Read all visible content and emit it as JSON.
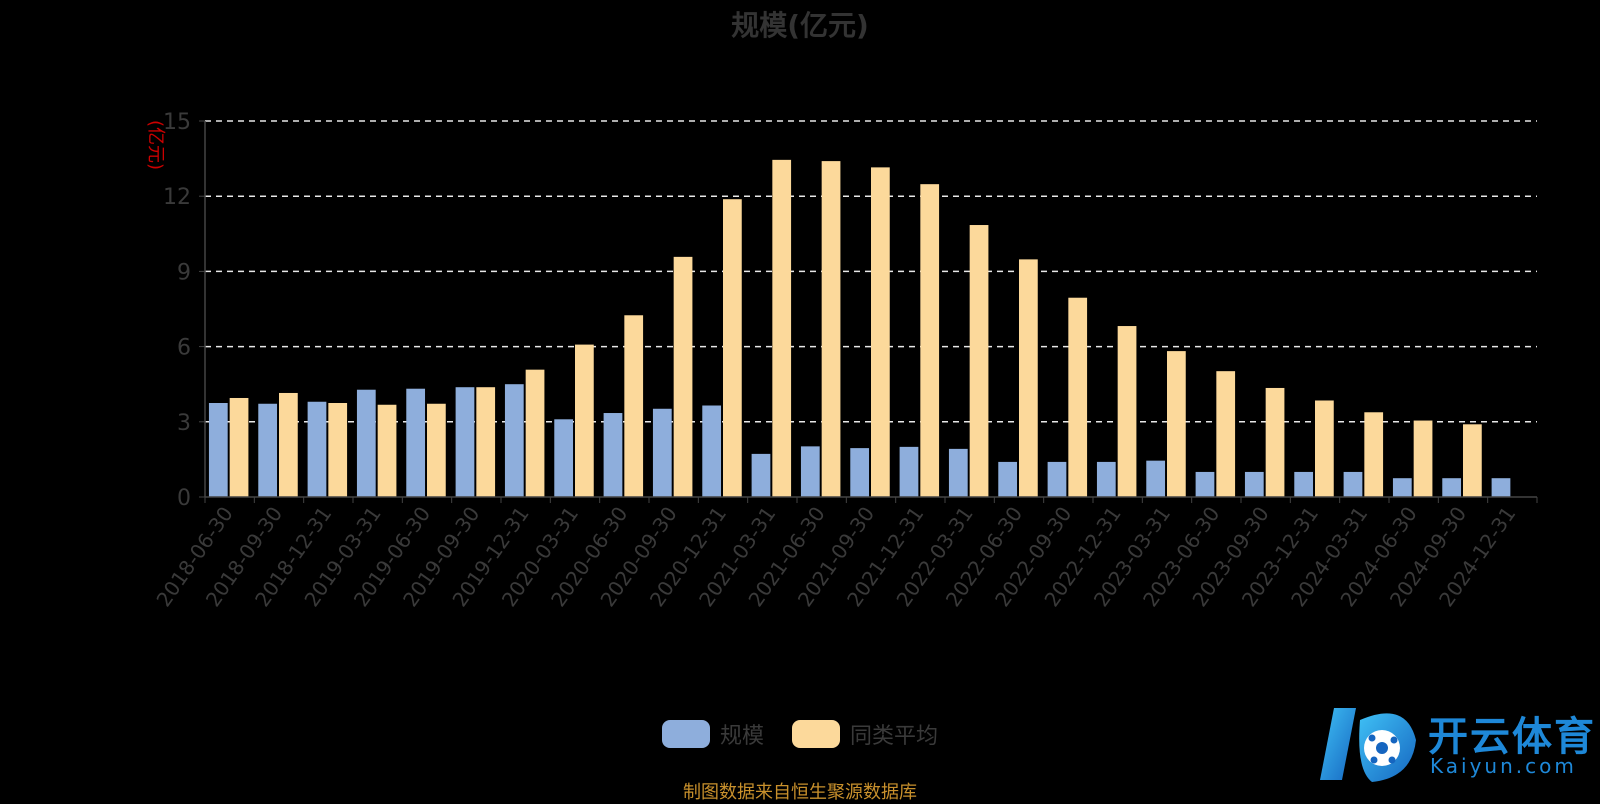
{
  "chart_data": {
    "type": "bar",
    "title": "规模(亿元)",
    "ylabel": "(亿元)",
    "xlabel": "",
    "ylim": [
      0,
      15
    ],
    "yticks": [
      0,
      3,
      6,
      9,
      12,
      15
    ],
    "grid": "dashed-horizontal",
    "legend_position": "bottom",
    "categories": [
      "2018-06-30",
      "2018-09-30",
      "2018-12-31",
      "2019-03-31",
      "2019-06-30",
      "2019-09-30",
      "2019-12-31",
      "2020-03-31",
      "2020-06-30",
      "2020-09-30",
      "2020-12-31",
      "2021-03-31",
      "2021-06-30",
      "2021-09-30",
      "2021-12-31",
      "2022-03-31",
      "2022-06-30",
      "2022-09-30",
      "2022-12-31",
      "2023-03-31",
      "2023-06-30",
      "2023-09-30",
      "2023-12-31",
      "2024-03-31",
      "2024-06-30",
      "2024-09-30",
      "2024-12-31"
    ],
    "series": [
      {
        "name": "规模",
        "color": "#8eaedc",
        "values": [
          3.75,
          3.72,
          3.8,
          4.28,
          4.32,
          4.38,
          4.5,
          3.1,
          3.35,
          3.52,
          3.65,
          1.72,
          2.02,
          1.95,
          2.0,
          1.92,
          1.4,
          1.4,
          1.4,
          1.45,
          1.0,
          1.0,
          1.0,
          1.0,
          0.75,
          0.75,
          0.75
        ]
      },
      {
        "name": "同类平均",
        "color": "#fcd99b",
        "values": [
          3.95,
          4.15,
          3.75,
          3.68,
          3.72,
          4.38,
          5.08,
          6.08,
          7.25,
          9.58,
          11.88,
          13.45,
          13.4,
          13.15,
          12.48,
          10.85,
          9.48,
          7.95,
          6.82,
          5.82,
          5.02,
          4.35,
          3.85,
          3.38,
          3.05,
          2.9,
          null
        ]
      }
    ]
  },
  "source_note": "制图数据来自恒生聚源数据库",
  "logo": {
    "text_cn": "开云体育",
    "text_en": "Kaiyun.com"
  }
}
